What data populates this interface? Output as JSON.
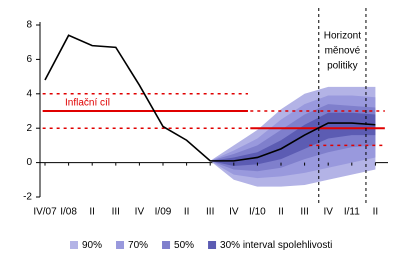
{
  "chart_data": {
    "type": "fan",
    "categories": [
      "IV/07",
      "I/08",
      "II",
      "III",
      "IV",
      "I/09",
      "II",
      "III",
      "IV",
      "I/10",
      "II",
      "III",
      "IV",
      "I/11",
      "II"
    ],
    "ylim": [
      -2,
      8
    ],
    "yticks": [
      -2,
      0,
      2,
      4,
      6,
      8
    ],
    "line": {
      "color": "#000000",
      "values": [
        4.8,
        7.4,
        6.8,
        6.7,
        4.5,
        2.1,
        1.3,
        0.1,
        0.1,
        0.3,
        0.8,
        1.6,
        2.3,
        2.3,
        2.2
      ]
    },
    "fan": [
      {
        "name": "90%",
        "color": "#b3b3e6",
        "upper": [
          null,
          null,
          null,
          null,
          null,
          null,
          null,
          0.1,
          1.0,
          1.9,
          3.1,
          4.0,
          4.4,
          4.4,
          4.4
        ],
        "lower": [
          null,
          null,
          null,
          null,
          null,
          null,
          null,
          0.1,
          -1.0,
          -1.4,
          -1.4,
          -1.3,
          -1.0,
          -0.7,
          -0.4
        ]
      },
      {
        "name": "70%",
        "color": "#9999dd",
        "upper": [
          null,
          null,
          null,
          null,
          null,
          null,
          null,
          0.1,
          0.7,
          1.4,
          2.5,
          3.4,
          3.9,
          3.9,
          3.8
        ],
        "lower": [
          null,
          null,
          null,
          null,
          null,
          null,
          null,
          0.1,
          -0.7,
          -0.9,
          -0.8,
          -0.6,
          -0.3,
          0,
          0.3
        ]
      },
      {
        "name": "50%",
        "color": "#7f7fcc",
        "upper": [
          null,
          null,
          null,
          null,
          null,
          null,
          null,
          0.1,
          0.5,
          1.0,
          1.9,
          2.8,
          3.4,
          3.3,
          3.2
        ],
        "lower": [
          null,
          null,
          null,
          null,
          null,
          null,
          null,
          0.1,
          -0.4,
          -0.5,
          -0.3,
          0.2,
          0.6,
          0.9,
          1.0
        ]
      },
      {
        "name": "30% interval spolehlivosti",
        "color": "#5c5cb3",
        "upper": [
          null,
          null,
          null,
          null,
          null,
          null,
          null,
          0.1,
          0.3,
          0.6,
          1.3,
          2.2,
          2.9,
          2.9,
          2.8
        ],
        "lower": [
          null,
          null,
          null,
          null,
          null,
          null,
          null,
          0.1,
          -0.2,
          -0.1,
          0.2,
          0.8,
          1.4,
          1.6,
          1.6
        ]
      }
    ],
    "target": {
      "label": "Inflační cíl",
      "color": "#e00000",
      "segments": [
        {
          "start": -0.1,
          "end": 8.6,
          "value": 3,
          "style": "solid"
        },
        {
          "start": -0.1,
          "end": 8.6,
          "value": 4,
          "style": "dashed"
        },
        {
          "start": -0.1,
          "end": 8.6,
          "value": 2,
          "style": "dashed"
        },
        {
          "start": 8.7,
          "end": 14.4,
          "value": 2,
          "style": "solid"
        },
        {
          "start": 8.7,
          "end": 14.4,
          "value": 3,
          "style": "dashed"
        },
        {
          "start": 11.2,
          "end": 14.4,
          "value": 1,
          "style": "dashed"
        }
      ]
    },
    "horizon": {
      "label": [
        "Horizont",
        "měnové",
        "politiky"
      ],
      "x": [
        11.6,
        13.6
      ]
    }
  }
}
